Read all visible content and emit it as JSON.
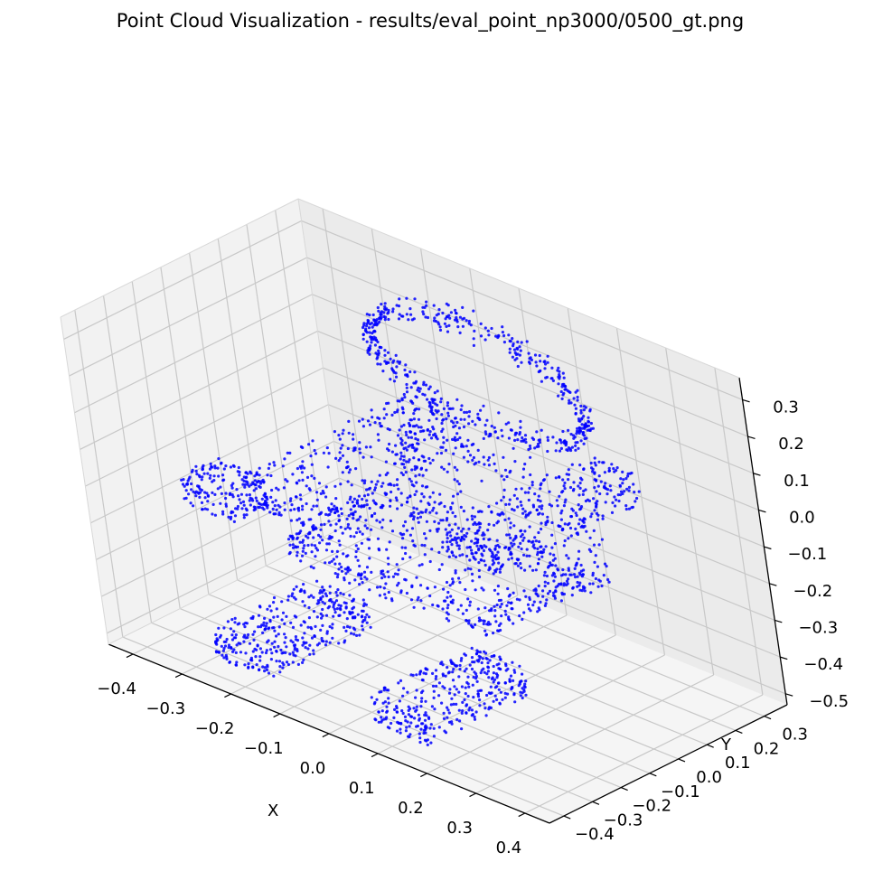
{
  "chart_data": {
    "type": "scatter",
    "projection": "3d",
    "title": "Point Cloud Visualization - results/eval_point_np3000/0500_gt.png",
    "xlabel": "X",
    "ylabel": "Y",
    "zlabel": "",
    "xlim": [
      -0.45,
      0.45
    ],
    "ylim": [
      -0.45,
      0.38
    ],
    "zlim": [
      -0.53,
      0.36
    ],
    "x_ticks": [
      "−0.4",
      "−0.3",
      "−0.2",
      "−0.1",
      "0.0",
      "0.1",
      "0.2",
      "0.3",
      "0.4"
    ],
    "y_ticks": [
      "−0.4",
      "−0.3",
      "−0.2",
      "−0.1",
      "0.0",
      "0.1",
      "0.2",
      "0.3"
    ],
    "z_ticks": [
      "−0.5",
      "−0.4",
      "−0.3",
      "−0.2",
      "−0.1",
      "0.0",
      "0.1",
      "0.2",
      "0.3"
    ],
    "grid": true,
    "marker_color": "#0000ff",
    "point_count_shown": 3000,
    "shape": "chair-like point cloud: backrest ring (top), seat, two arm rails and two front legs"
  }
}
